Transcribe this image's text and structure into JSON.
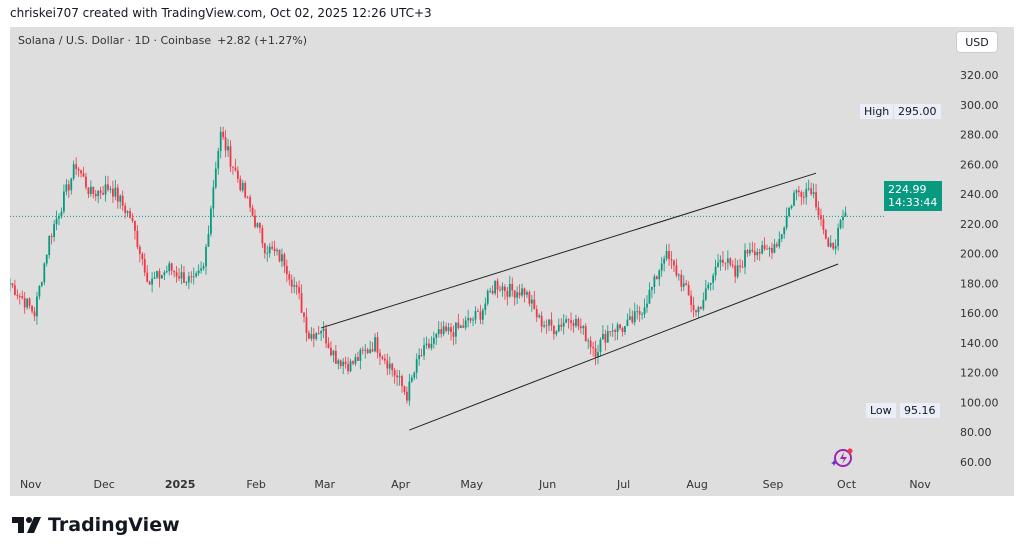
{
  "credit": "chriskei707 created with TradingView.com, Oct 02, 2025 12:26 UTC+3",
  "header": {
    "symbol": "Solana / U.S. Dollar · 1D · Coinbase",
    "change": "+2.82 (+1.27%)",
    "currency": "USD"
  },
  "high": {
    "label": "High",
    "value": "295.00"
  },
  "low": {
    "label": "Low",
    "value": "95.16"
  },
  "last": {
    "price": "224.99",
    "countdown": "14:33:44"
  },
  "logo": "TradingView",
  "colors": {
    "up": "#089981",
    "down": "#f23645",
    "bg": "#dedede"
  },
  "chart_data": {
    "type": "candlestick",
    "ylim": [
      50,
      330
    ],
    "yticks": [
      60,
      80,
      100,
      120,
      140,
      160,
      180,
      200,
      220,
      240,
      260,
      280,
      300,
      320
    ],
    "xlim": [
      0,
      370
    ],
    "xticks": [
      {
        "day": 6,
        "label": "Nov"
      },
      {
        "day": 36,
        "label": "Dec"
      },
      {
        "day": 67,
        "label": "2025"
      },
      {
        "day": 98,
        "label": "Feb"
      },
      {
        "day": 126,
        "label": "Mar"
      },
      {
        "day": 157,
        "label": "Apr"
      },
      {
        "day": 186,
        "label": "May"
      },
      {
        "day": 217,
        "label": "Jun"
      },
      {
        "day": 248,
        "label": "Jul"
      },
      {
        "day": 278,
        "label": "Aug"
      },
      {
        "day": 309,
        "label": "Sep"
      },
      {
        "day": 339,
        "label": "Oct"
      },
      {
        "day": 369,
        "label": "Nov"
      }
    ],
    "close_keypoints": [
      [
        0,
        180
      ],
      [
        10,
        160
      ],
      [
        16,
        210
      ],
      [
        27,
        260
      ],
      [
        33,
        240
      ],
      [
        41,
        245
      ],
      [
        49,
        225
      ],
      [
        57,
        180
      ],
      [
        65,
        190
      ],
      [
        75,
        180
      ],
      [
        79,
        190
      ],
      [
        84,
        260
      ],
      [
        86,
        280
      ],
      [
        92,
        255
      ],
      [
        98,
        230
      ],
      [
        104,
        205
      ],
      [
        112,
        195
      ],
      [
        118,
        170
      ],
      [
        122,
        145
      ],
      [
        127,
        150
      ],
      [
        133,
        130
      ],
      [
        139,
        125
      ],
      [
        149,
        140
      ],
      [
        155,
        125
      ],
      [
        162,
        105
      ],
      [
        167,
        130
      ],
      [
        175,
        145
      ],
      [
        184,
        150
      ],
      [
        192,
        160
      ],
      [
        198,
        180
      ],
      [
        204,
        175
      ],
      [
        210,
        175
      ],
      [
        216,
        155
      ],
      [
        222,
        150
      ],
      [
        229,
        158
      ],
      [
        235,
        145
      ],
      [
        239,
        135
      ],
      [
        245,
        150
      ],
      [
        251,
        150
      ],
      [
        257,
        160
      ],
      [
        263,
        180
      ],
      [
        267,
        200
      ],
      [
        273,
        185
      ],
      [
        280,
        160
      ],
      [
        286,
        180
      ],
      [
        290,
        200
      ],
      [
        296,
        185
      ],
      [
        302,
        205
      ],
      [
        308,
        200
      ],
      [
        314,
        210
      ],
      [
        320,
        240
      ],
      [
        327,
        245
      ],
      [
        331,
        225
      ],
      [
        334,
        200
      ],
      [
        337,
        210
      ],
      [
        341,
        225
      ]
    ],
    "trendlines": [
      {
        "name": "channel-upper",
        "points": [
          [
            127,
            150
          ],
          [
            329,
            254
          ]
        ]
      },
      {
        "name": "channel-lower",
        "points": [
          [
            163,
            81.4
          ],
          [
            338,
            193
          ]
        ]
      }
    ],
    "last_price": 224.99
  }
}
